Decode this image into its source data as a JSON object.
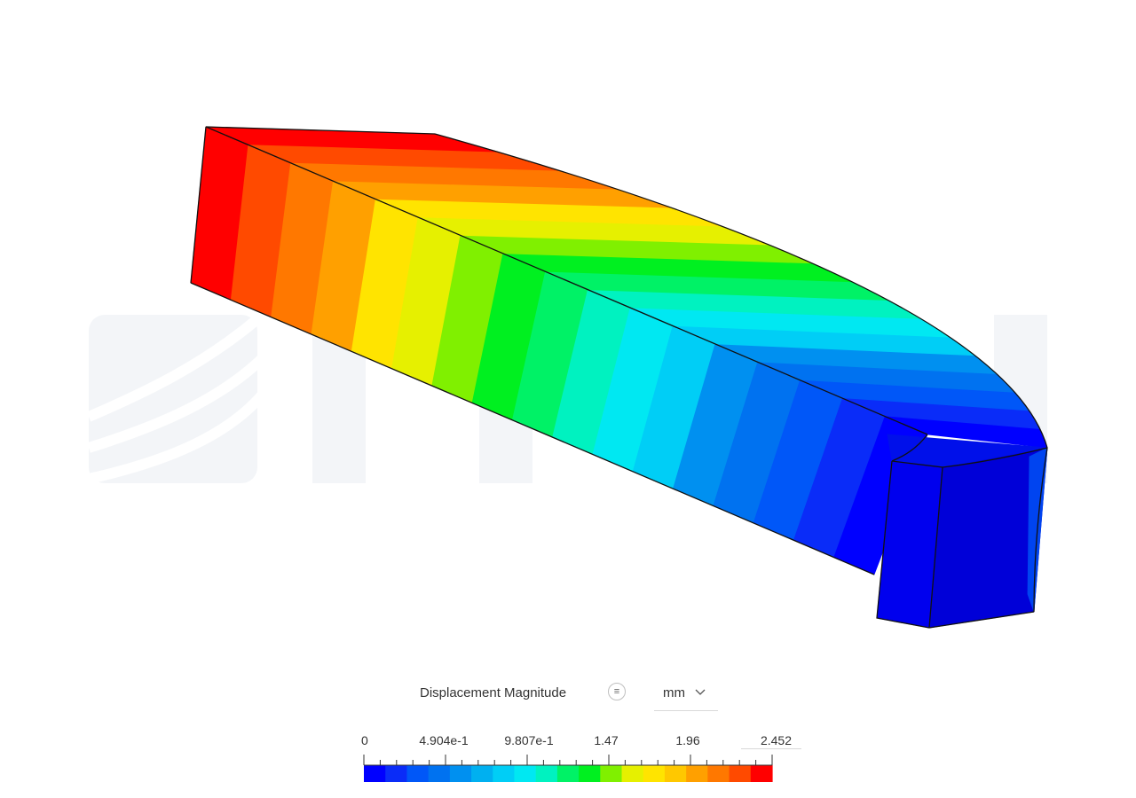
{
  "legend": {
    "title": "Displacement Magnitude",
    "menu_icon": "list-icon",
    "unit": "mm",
    "unit_chevron_icon": "chevron-down-icon",
    "tick_labels": [
      "0",
      "4.904e-1",
      "9.807e-1",
      "1.47",
      "1.96",
      "2.452"
    ],
    "value_min": 0,
    "value_max": 2.452,
    "colors": [
      "#0000ff",
      "#0a2cf8",
      "#0057f8",
      "#0072f0",
      "#0090f0",
      "#00b0f0",
      "#00cef6",
      "#00e8f2",
      "#00f2c0",
      "#00f266",
      "#00f020",
      "#80f000",
      "#e6f000",
      "#ffe400",
      "#ffc800",
      "#ffa000",
      "#ff7800",
      "#ff4a00",
      "#ff0000"
    ]
  },
  "model": {
    "watermark_icon": "simscale-watermark-logo"
  }
}
